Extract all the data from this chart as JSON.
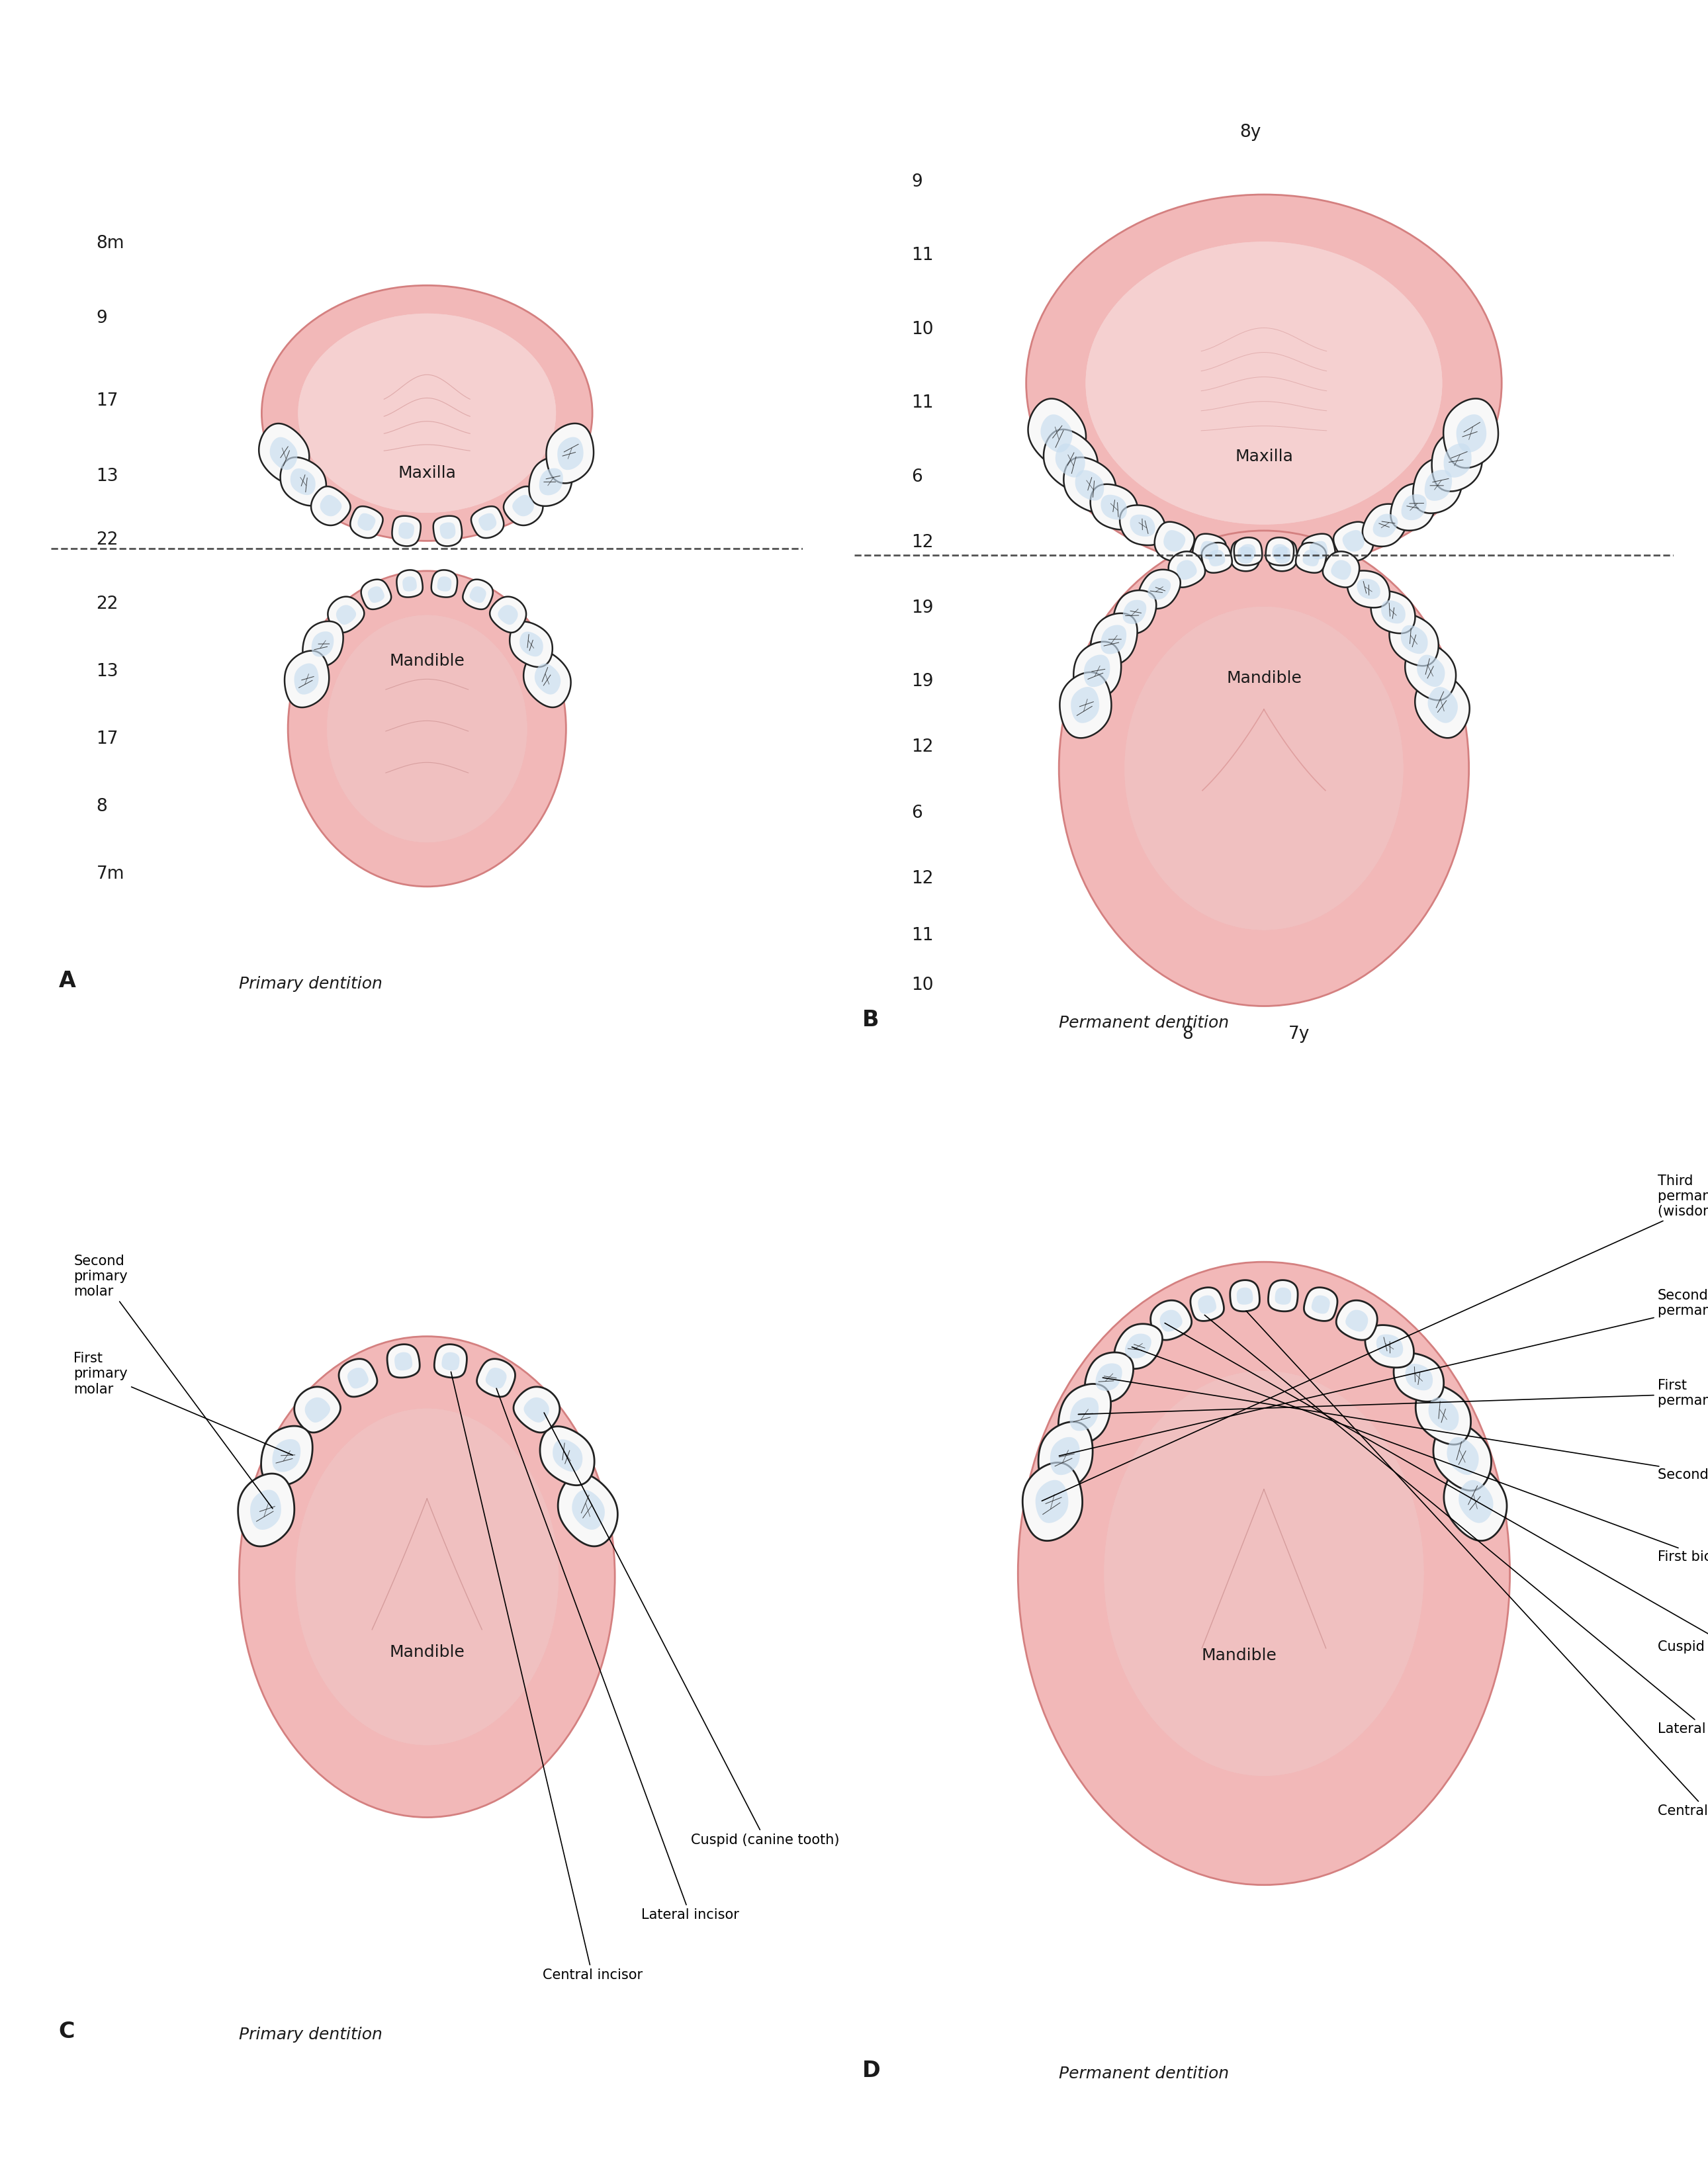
{
  "bg_color": "#ffffff",
  "pink_gum": "#f2b8b8",
  "pink_palate": "#f5d0d0",
  "pink_tongue": "#e8a0a0",
  "pink_border": "#d48080",
  "tooth_white": "#f8f8f8",
  "tooth_blue": "#c8ddf0",
  "tooth_stroke": "#222222",
  "text_color": "#1a1a1a",
  "dashed_color": "#333333",
  "label_fontsize": 18,
  "panel_label_fontsize": 24,
  "number_fontsize": 19,
  "annot_fontsize": 15,
  "panel_A_upper_labels": [
    "8m",
    "9",
    "17",
    "13",
    "22"
  ],
  "panel_A_lower_labels": [
    "22",
    "13",
    "17",
    "8",
    "7m"
  ],
  "panel_B_upper_labels": [
    "8y",
    "9",
    "11",
    "10",
    "11",
    "6",
    "12",
    "19"
  ],
  "panel_B_lower_labels": [
    "19",
    "12",
    "6",
    "12",
    "11",
    "10",
    "8",
    "7y"
  ]
}
